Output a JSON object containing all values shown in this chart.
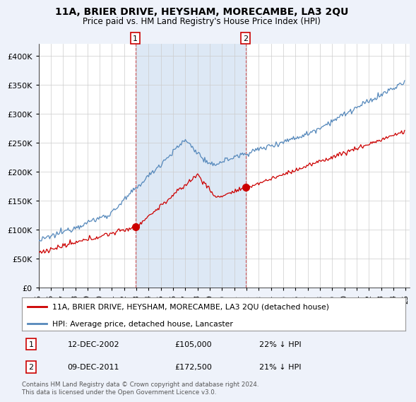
{
  "title": "11A, BRIER DRIVE, HEYSHAM, MORECAMBE, LA3 2QU",
  "subtitle": "Price paid vs. HM Land Registry's House Price Index (HPI)",
  "ylim": [
    0,
    420000
  ],
  "yticks": [
    0,
    50000,
    100000,
    150000,
    200000,
    250000,
    300000,
    350000,
    400000
  ],
  "ytick_labels": [
    "£0",
    "£50K",
    "£100K",
    "£150K",
    "£200K",
    "£250K",
    "£300K",
    "£350K",
    "£400K"
  ],
  "t1_year": 2002.92,
  "t1_price": 105000,
  "t2_year": 2011.92,
  "t2_price": 172500,
  "line1_color": "#cc0000",
  "line2_color": "#5588bb",
  "shade_color": "#dde8f5",
  "legend_label1": "11A, BRIER DRIVE, HEYSHAM, MORECAMBE, LA3 2QU (detached house)",
  "legend_label2": "HPI: Average price, detached house, Lancaster",
  "footer": "Contains HM Land Registry data © Crown copyright and database right 2024.\nThis data is licensed under the Open Government Licence v3.0.",
  "background_color": "#eef2fa",
  "plot_bg": "#ffffff",
  "grid_color": "#cccccc",
  "x_start_year": 1995,
  "x_end_year": 2025
}
